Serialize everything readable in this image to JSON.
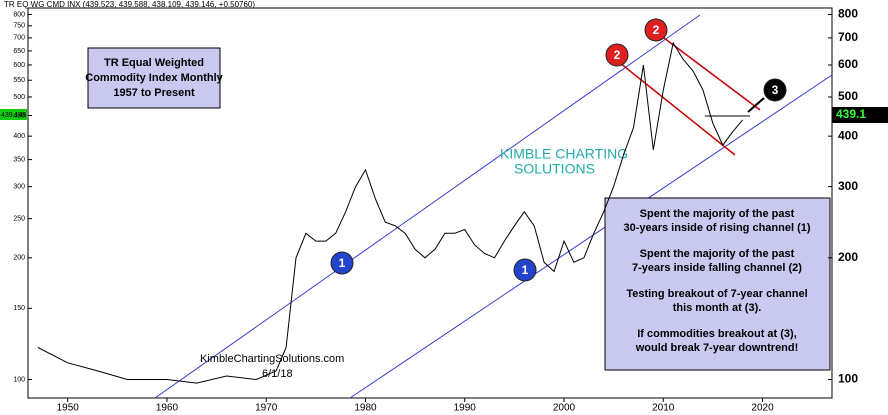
{
  "chart_data": {
    "type": "line",
    "header": "TR EQ WG CMD INX (439.523, 439.588, 438.109, 439.146, +0.50760)",
    "title_lines": [
      "TR Equal Weighted",
      "Commodity Index Monthly",
      "1957 to Present"
    ],
    "notes": [
      "Spent the majority of the past",
      "30-years inside of rising channel (1)",
      "Spent the majority of the past",
      "7-years inside falling channel (2)",
      "Testing breakout of 7-year channel",
      "this month at (3).",
      "If commodities breakout at (3),",
      "would break 7-year downtrend!"
    ],
    "markers": [
      "1",
      "1",
      "2",
      "2",
      "3"
    ],
    "watermark": [
      "KIMBLE CHARTING",
      "SOLUTIONS"
    ],
    "site": "KimbleChartingSolutions.com",
    "date": "6/1/18",
    "last_value_labels": [
      "439.146",
      "439.1"
    ],
    "x": [
      1947,
      1950,
      1953,
      1956,
      1960,
      1963,
      1966,
      1969,
      1971,
      1972,
      1973,
      1974,
      1975,
      1976,
      1977,
      1978,
      1979,
      1980,
      1981,
      1982,
      1983,
      1984,
      1985,
      1986,
      1987,
      1988,
      1989,
      1990,
      1991,
      1992,
      1993,
      1994,
      1995,
      1996,
      1997,
      1998,
      1999,
      2000,
      2001,
      2002,
      2003,
      2004,
      2005,
      2006,
      2007,
      2008,
      2009,
      2010,
      2011,
      2012,
      2013,
      2014,
      2015,
      2016,
      2017,
      2018
    ],
    "values": [
      120,
      110,
      105,
      100,
      100,
      98,
      102,
      100,
      105,
      120,
      200,
      230,
      220,
      220,
      230,
      260,
      300,
      330,
      280,
      245,
      240,
      230,
      210,
      200,
      210,
      230,
      230,
      235,
      215,
      205,
      200,
      220,
      240,
      260,
      240,
      195,
      185,
      220,
      195,
      200,
      230,
      260,
      300,
      360,
      420,
      600,
      370,
      520,
      680,
      620,
      580,
      520,
      430,
      380,
      410,
      439.146
    ],
    "color": "#000000",
    "log_scale": true,
    "xlim": [
      1946,
      2027
    ],
    "xticks": [
      1950,
      1960,
      1970,
      1980,
      1990,
      2000,
      2010,
      2020
    ],
    "ylim": [
      90,
      830
    ],
    "yticks": [
      100,
      150,
      200,
      250,
      300,
      350,
      400,
      450,
      500,
      550,
      600,
      650,
      700,
      750,
      800
    ],
    "y2lim": [
      90,
      830
    ],
    "y2ticks": [
      100,
      200,
      300,
      400,
      500,
      600,
      700,
      800
    ]
  }
}
